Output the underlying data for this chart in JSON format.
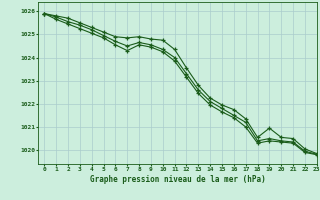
{
  "title": "Graphe pression niveau de la mer (hPa)",
  "background_color": "#cceedd",
  "grid_color": "#aacccc",
  "line_color": "#1a5c1a",
  "xlim": [
    -0.5,
    23
  ],
  "ylim": [
    1019.4,
    1026.4
  ],
  "yticks": [
    1020,
    1021,
    1022,
    1023,
    1024,
    1025,
    1026
  ],
  "xticks": [
    0,
    1,
    2,
    3,
    4,
    5,
    6,
    7,
    8,
    9,
    10,
    11,
    12,
    13,
    14,
    15,
    16,
    17,
    18,
    19,
    20,
    21,
    22,
    23
  ],
  "series": [
    [
      1025.9,
      1025.8,
      1025.7,
      1025.5,
      1025.3,
      1025.1,
      1024.9,
      1024.85,
      1024.9,
      1024.8,
      1024.75,
      1024.35,
      1023.55,
      1022.8,
      1022.25,
      1021.95,
      1021.75,
      1021.35,
      1020.55,
      1020.95,
      1020.55,
      1020.5,
      1020.05,
      1019.85
    ],
    [
      1025.9,
      1025.65,
      1025.45,
      1025.25,
      1025.05,
      1024.85,
      1024.55,
      1024.3,
      1024.55,
      1024.45,
      1024.25,
      1023.85,
      1023.15,
      1022.45,
      1021.95,
      1021.65,
      1021.4,
      1021.0,
      1020.3,
      1020.4,
      1020.35,
      1020.3,
      1019.9,
      1019.8
    ],
    [
      1025.9,
      1025.75,
      1025.55,
      1025.4,
      1025.2,
      1024.95,
      1024.7,
      1024.5,
      1024.65,
      1024.55,
      1024.35,
      1024.0,
      1023.3,
      1022.6,
      1022.1,
      1021.8,
      1021.5,
      1021.2,
      1020.4,
      1020.5,
      1020.4,
      1020.35,
      1019.95,
      1019.82
    ]
  ]
}
